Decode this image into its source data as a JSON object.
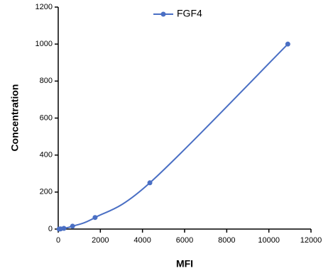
{
  "chart_data": {
    "type": "line",
    "x_label": "MFI",
    "y_label": "Concentration",
    "x": [
      40,
      110,
      270,
      680,
      1750,
      4350,
      10900
    ],
    "series": [
      {
        "name": "FGF4",
        "color": "#4a6fc4",
        "values": [
          0,
          1,
          3.9,
          15.6,
          62.5,
          250,
          1000
        ]
      }
    ],
    "xlim": [
      0,
      12000
    ],
    "xticks": [
      0,
      2000,
      4000,
      6000,
      8000,
      10000,
      12000
    ],
    "ylim": [
      0,
      1200
    ],
    "yticks": [
      0,
      200,
      400,
      600,
      800,
      1000,
      1200
    ],
    "grid": false,
    "legend": "top"
  }
}
